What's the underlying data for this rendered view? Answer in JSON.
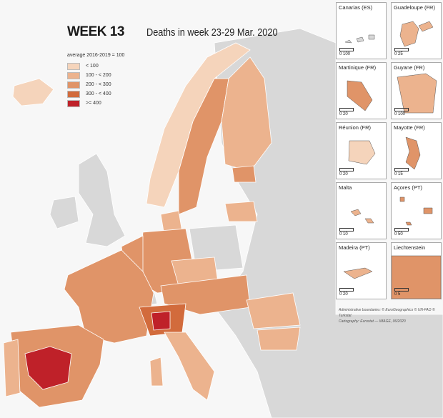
{
  "header": {
    "title": "WEEK 13",
    "subtitle": "Deaths in week 23-29 Mar. 2020"
  },
  "legend": {
    "title": "average 2016-2019 = 100",
    "items": [
      {
        "label": "< 100",
        "color": "#f5d4bb"
      },
      {
        "label": "100 - < 200",
        "color": "#ecb38e"
      },
      {
        "label": "200 - < 300",
        "color": "#e09468"
      },
      {
        "label": "300 - < 400",
        "color": "#d26b3c"
      },
      {
        "label": ">= 400",
        "color": "#bf2129"
      }
    ]
  },
  "colors": {
    "sea": "#f7f7f7",
    "nodata": "#d8d8d8"
  },
  "insets": [
    {
      "name": "Canarias (ES)",
      "scale": "0   100"
    },
    {
      "name": "Guadeloupe (FR)",
      "scale": "0   25"
    },
    {
      "name": "Martinique (FR)",
      "scale": "0   20"
    },
    {
      "name": "Guyane (FR)",
      "scale": "0   100"
    },
    {
      "name": "Réunion (FR)",
      "scale": "0   20"
    },
    {
      "name": "Mayotte (FR)",
      "scale": "0   15"
    },
    {
      "name": "Malta",
      "scale": "0   10"
    },
    {
      "name": "Açores (PT)",
      "scale": "0   50"
    },
    {
      "name": "Madeira (PT)",
      "scale": "0   20"
    },
    {
      "name": "Liechtenstein",
      "scale": "0   5"
    }
  ],
  "credits": [
    "Administrative boundaries: © EuroGeographics © UN-FAO © Turkstat",
    "Cartography: Eurostat — IMAGE, 06/2020"
  ]
}
